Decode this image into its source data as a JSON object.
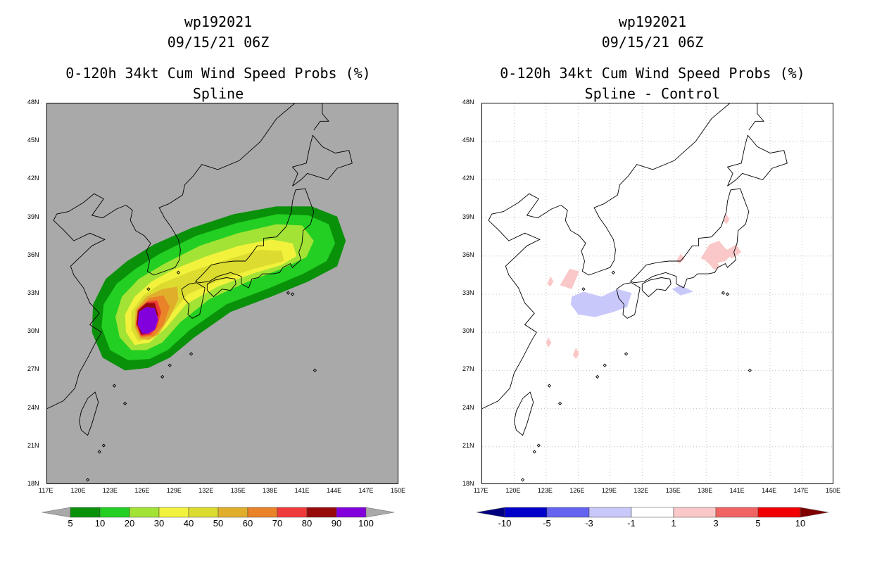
{
  "left": {
    "title_line1": "wp192021",
    "title_line2": "09/15/21 06Z",
    "title_line3": "0-120h 34kt Cum Wind Speed Probs (%)",
    "title_line4": "Spline"
  },
  "right": {
    "title_line1": "wp192021",
    "title_line2": "09/15/21 06Z",
    "title_line3": "0-120h 34kt Cum Wind Speed Probs (%)",
    "title_line4": "Spline - Control"
  },
  "chart_data": [
    {
      "type": "heatmap",
      "title": "0-120h 34kt Cum Wind Speed Probs (%) Spline",
      "storm_id": "wp192021",
      "valid_time": "09/15/21 06Z",
      "x_ticks": [
        "117E",
        "120E",
        "123E",
        "126E",
        "129E",
        "132E",
        "135E",
        "138E",
        "141E",
        "144E",
        "147E",
        "150E"
      ],
      "y_ticks": [
        "18N",
        "21N",
        "24N",
        "27N",
        "30N",
        "33N",
        "36N",
        "39N",
        "42N",
        "45N",
        "48N"
      ],
      "xlim": [
        117,
        150
      ],
      "ylim": [
        18,
        48
      ],
      "background_color": "#a9a9a9",
      "colorbar": {
        "labels": [
          "5",
          "10",
          "20",
          "30",
          "40",
          "50",
          "60",
          "70",
          "80",
          "90",
          "100"
        ],
        "colors": [
          "#0a910a",
          "#22cf22",
          "#a2e335",
          "#f2f23c",
          "#dcdc30",
          "#e1ae2c",
          "#ea8227",
          "#f03a3a",
          "#970a0a",
          "#8200dc"
        ],
        "ends": [
          "#a9a9a9",
          "#a9a9a9"
        ]
      },
      "contours": [
        {
          "level": 5,
          "color": "#0a910a"
        },
        {
          "level": 10,
          "color": "#22cf22"
        },
        {
          "level": 20,
          "color": "#a2e335"
        },
        {
          "level": 30,
          "color": "#f2f23c"
        },
        {
          "level": 40,
          "color": "#dcdc30"
        },
        {
          "level": 50,
          "color": "#e1ae2c"
        },
        {
          "level": 60,
          "color": "#ea8227"
        },
        {
          "level": 70,
          "color": "#f03a3a"
        },
        {
          "level": 80,
          "color": "#970a0a"
        },
        {
          "level": 90,
          "color": "#8200dc"
        }
      ]
    },
    {
      "type": "heatmap",
      "title": "0-120h 34kt Cum Wind Speed Probs (%) Spline - Control",
      "storm_id": "wp192021",
      "valid_time": "09/15/21 06Z",
      "x_ticks": [
        "117E",
        "120E",
        "123E",
        "126E",
        "129E",
        "132E",
        "135E",
        "138E",
        "141E",
        "144E",
        "147E",
        "150E"
      ],
      "y_ticks": [
        "18N",
        "21N",
        "24N",
        "27N",
        "30N",
        "33N",
        "36N",
        "39N",
        "42N",
        "45N",
        "48N"
      ],
      "xlim": [
        117,
        150
      ],
      "ylim": [
        18,
        48
      ],
      "grid": true,
      "colorbar": {
        "labels": [
          "-10",
          "-5",
          "-3",
          "-1",
          "1",
          "3",
          "5",
          "10"
        ],
        "colors": [
          "#0000c8",
          "#6464f0",
          "#c8c8fa",
          "#ffffff",
          "#fac8c8",
          "#f06464",
          "#f00000"
        ],
        "ends": [
          "#00007f",
          "#7f0000"
        ]
      },
      "anomalies": [
        {
          "label": "positive",
          "color": "#fac8c8"
        },
        {
          "label": "negative",
          "color": "#c8c8fa"
        }
      ]
    }
  ]
}
